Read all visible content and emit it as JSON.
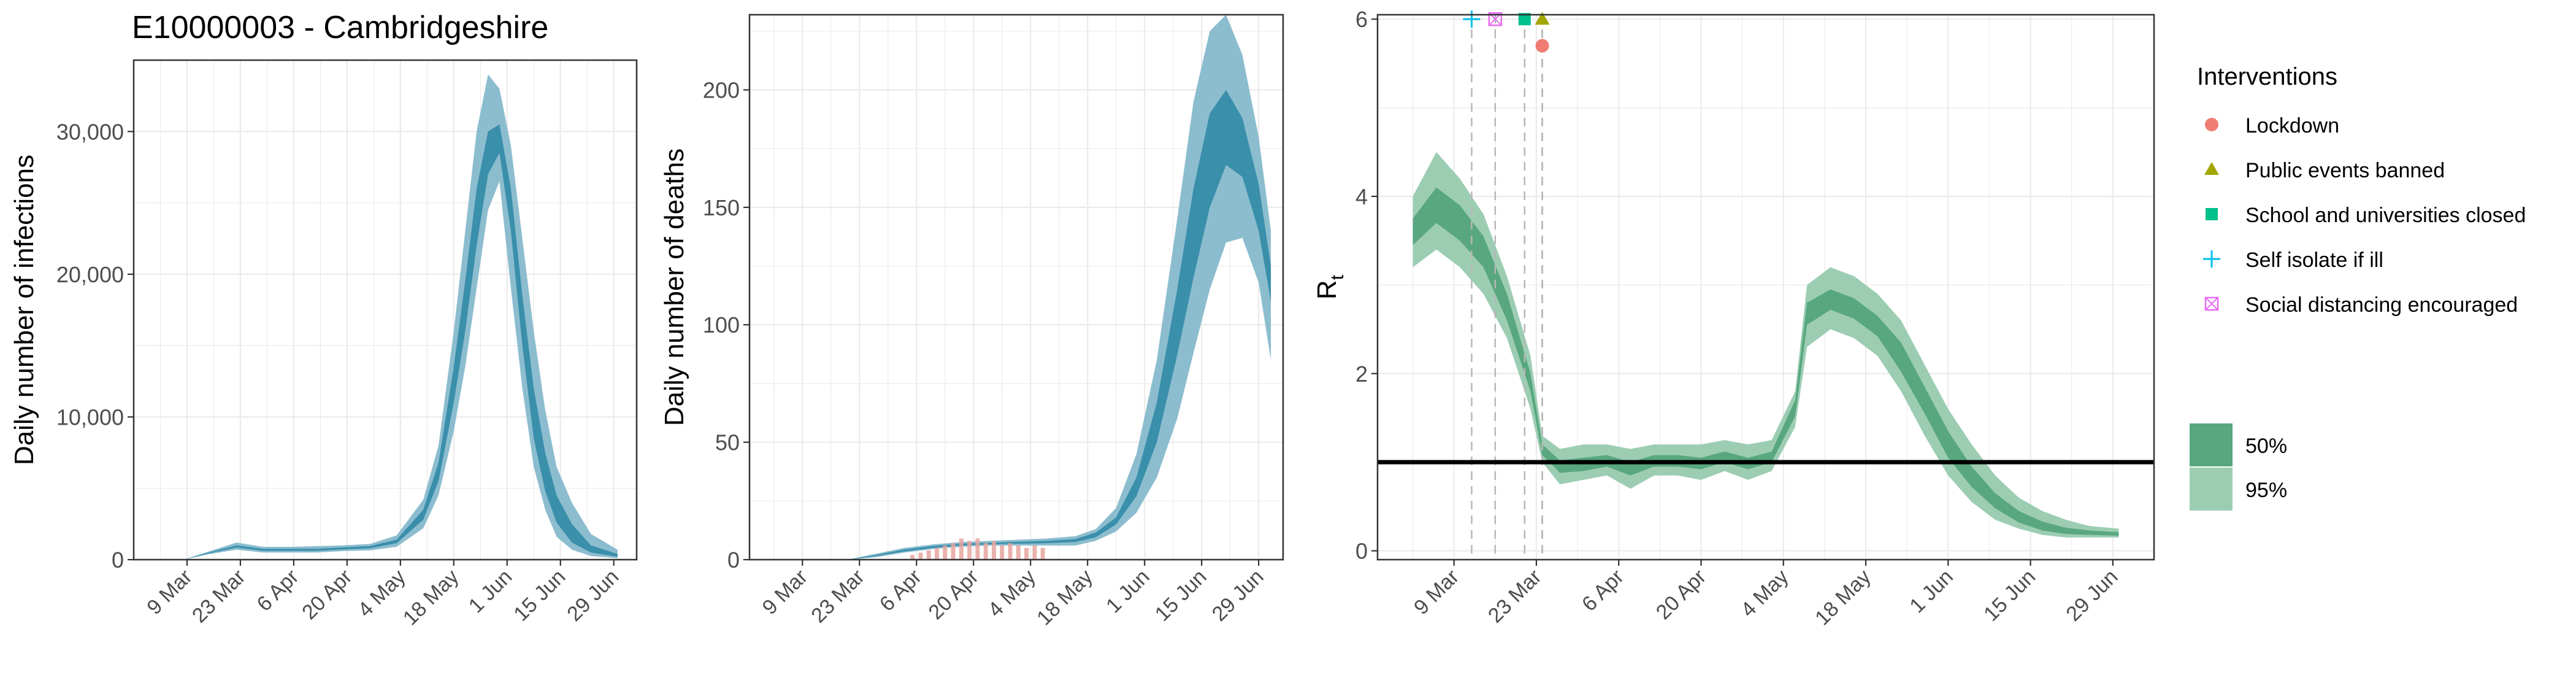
{
  "figure": {
    "title": "E10000003 - Cambridgeshire"
  },
  "colors": {
    "band50_infect": "#3a8fab",
    "band95_infect": "#8cbdcf",
    "band50_rt": "#58a77f",
    "band95_rt": "#9ccdb3",
    "obs_deaths": "#e6a4a0",
    "lockdown": "#f07c73",
    "public_events": "#a3a500",
    "schools": "#00c08b",
    "self_isolate": "#00bfe9",
    "social_distancing": "#e76bf3",
    "grid": "#ebebeb",
    "vline": "#b7b7b7"
  },
  "legend": {
    "interventions_title": "Interventions",
    "interventions": [
      {
        "label": "Lockdown",
        "shape": "circle",
        "color_key": "lockdown"
      },
      {
        "label": "Public events banned",
        "shape": "triangle",
        "color_key": "public_events"
      },
      {
        "label": "School and universities closed",
        "shape": "square",
        "color_key": "schools"
      },
      {
        "label": "Self isolate if ill",
        "shape": "plus",
        "color_key": "self_isolate"
      },
      {
        "label": "Social distancing encouraged",
        "shape": "boxx",
        "color_key": "social_distancing"
      }
    ],
    "bands": [
      {
        "label": "50%",
        "color_key": "band50_rt"
      },
      {
        "label": "95%",
        "color_key": "band95_rt"
      }
    ]
  },
  "chart_data": [
    {
      "type": "area",
      "ylabel": "Daily number of infections",
      "ylim": [
        0,
        35000
      ],
      "yticks": [
        0,
        10000,
        20000,
        30000
      ],
      "ytick_labels": [
        "0",
        "10,000",
        "20,000",
        "30,000"
      ],
      "xlim": [
        "2020-02-24",
        "2020-07-05"
      ],
      "xticks": [
        "2020-03-09",
        "2020-03-23",
        "2020-04-06",
        "2020-04-20",
        "2020-05-04",
        "2020-05-18",
        "2020-06-01",
        "2020-06-15",
        "2020-06-29"
      ],
      "xtick_labels": [
        "9 Mar",
        "23 Mar",
        "6 Apr",
        "20 Apr",
        "4 May",
        "18 May",
        "1 Jun",
        "15 Jun",
        "29 Jun"
      ],
      "x": [
        "2020-03-08",
        "2020-03-15",
        "2020-03-22",
        "2020-03-29",
        "2020-04-05",
        "2020-04-12",
        "2020-04-19",
        "2020-04-26",
        "2020-05-03",
        "2020-05-10",
        "2020-05-14",
        "2020-05-18",
        "2020-05-21",
        "2020-05-24",
        "2020-05-27",
        "2020-05-30",
        "2020-06-02",
        "2020-06-05",
        "2020-06-08",
        "2020-06-11",
        "2020-06-14",
        "2020-06-18",
        "2020-06-23",
        "2020-06-30"
      ],
      "series": [
        {
          "band": "95%",
          "lower": [
            0,
            400,
            700,
            500,
            500,
            500,
            600,
            650,
            900,
            2200,
            4500,
            9000,
            13500,
            19000,
            24500,
            26500,
            19000,
            12000,
            6500,
            3500,
            1600,
            700,
            250,
            100
          ],
          "upper": [
            0,
            600,
            1200,
            900,
            900,
            950,
            1000,
            1100,
            1700,
            4200,
            8000,
            16000,
            23000,
            30000,
            34000,
            33000,
            29000,
            22500,
            16000,
            10500,
            6500,
            4000,
            1800,
            700
          ]
        },
        {
          "band": "50%",
          "lower": [
            0,
            450,
            850,
            620,
            620,
            620,
            720,
            800,
            1150,
            2800,
            5500,
            11000,
            16000,
            22000,
            27000,
            28500,
            23000,
            15000,
            8500,
            4800,
            2600,
            1200,
            500,
            200
          ],
          "upper": [
            0,
            520,
            1000,
            760,
            760,
            760,
            860,
            950,
            1400,
            3500,
            6800,
            13500,
            19500,
            26000,
            30000,
            30500,
            26000,
            18500,
            12000,
            7500,
            4500,
            2500,
            1000,
            400
          ]
        }
      ]
    },
    {
      "type": "area",
      "ylabel": "Daily number of deaths",
      "ylim": [
        0,
        232
      ],
      "yticks": [
        0,
        50,
        100,
        150,
        200
      ],
      "ytick_labels": [
        "0",
        "50",
        "100",
        "150",
        "200"
      ],
      "xlim": [
        "2020-02-25",
        "2020-07-05"
      ],
      "xticks": [
        "2020-03-09",
        "2020-03-23",
        "2020-04-06",
        "2020-04-20",
        "2020-05-04",
        "2020-05-18",
        "2020-06-01",
        "2020-06-15",
        "2020-06-29"
      ],
      "xtick_labels": [
        "9 Mar",
        "23 Mar",
        "6 Apr",
        "20 Apr",
        "4 May",
        "18 May",
        "1 Jun",
        "15 Jun",
        "29 Jun"
      ],
      "x": [
        "2020-03-20",
        "2020-03-27",
        "2020-04-03",
        "2020-04-10",
        "2020-04-17",
        "2020-04-24",
        "2020-05-01",
        "2020-05-08",
        "2020-05-15",
        "2020-05-20",
        "2020-05-25",
        "2020-05-30",
        "2020-06-04",
        "2020-06-09",
        "2020-06-13",
        "2020-06-17",
        "2020-06-21",
        "2020-06-25",
        "2020-06-29",
        "2020-07-02"
      ],
      "series": [
        {
          "band": "95%",
          "lower": [
            0,
            1,
            3,
            4.5,
            5.5,
            6,
            6,
            6,
            6,
            8,
            12,
            20,
            35,
            60,
            88,
            115,
            135,
            137,
            118,
            85
          ],
          "upper": [
            0,
            2.5,
            5,
            6.5,
            7.5,
            8,
            8.5,
            9,
            10,
            13,
            22,
            45,
            85,
            145,
            195,
            225,
            232,
            215,
            180,
            140
          ]
        },
        {
          "band": "50%",
          "lower": [
            0,
            1.5,
            3.5,
            5,
            6,
            6.5,
            6.8,
            7,
            7.5,
            9.5,
            15,
            27,
            50,
            87,
            120,
            150,
            168,
            163,
            140,
            110
          ],
          "upper": [
            0,
            2,
            4.3,
            5.8,
            6.8,
            7.2,
            7.6,
            8,
            8.8,
            11.5,
            18,
            35,
            67,
            115,
            158,
            190,
            200,
            188,
            160,
            125
          ]
        }
      ],
      "observed_deaths": {
        "dates": [
          "2020-04-05",
          "2020-04-07",
          "2020-04-09",
          "2020-04-11",
          "2020-04-13",
          "2020-04-15",
          "2020-04-17",
          "2020-04-19",
          "2020-04-21",
          "2020-04-23",
          "2020-04-25",
          "2020-04-27",
          "2020-04-29",
          "2020-05-01",
          "2020-05-03",
          "2020-05-05",
          "2020-05-07"
        ],
        "values": [
          2,
          3,
          4,
          5,
          6,
          7,
          9,
          8,
          9,
          7,
          8,
          6,
          7,
          6,
          5,
          6,
          5
        ]
      }
    },
    {
      "type": "area",
      "ylabel": "R",
      "ylabel_sub": "t",
      "ylim": [
        -0.1,
        6.05
      ],
      "yticks": [
        0,
        2,
        4,
        6
      ],
      "ytick_labels": [
        "0",
        "2",
        "4",
        "6"
      ],
      "xlim": [
        "2020-02-25",
        "2020-07-06"
      ],
      "xticks": [
        "2020-03-09",
        "2020-03-23",
        "2020-04-06",
        "2020-04-20",
        "2020-05-04",
        "2020-05-18",
        "2020-06-01",
        "2020-06-15",
        "2020-06-29"
      ],
      "xtick_labels": [
        "9 Mar",
        "23 Mar",
        "6 Apr",
        "20 Apr",
        "4 May",
        "18 May",
        "1 Jun",
        "15 Jun",
        "29 Jun"
      ],
      "reference_line": 1,
      "x": [
        "2020-03-02",
        "2020-03-06",
        "2020-03-10",
        "2020-03-14",
        "2020-03-18",
        "2020-03-22",
        "2020-03-24",
        "2020-03-27",
        "2020-03-31",
        "2020-04-04",
        "2020-04-08",
        "2020-04-12",
        "2020-04-16",
        "2020-04-20",
        "2020-04-24",
        "2020-04-28",
        "2020-05-02",
        "2020-05-06",
        "2020-05-08",
        "2020-05-12",
        "2020-05-16",
        "2020-05-20",
        "2020-05-24",
        "2020-05-28",
        "2020-06-01",
        "2020-06-05",
        "2020-06-09",
        "2020-06-13",
        "2020-06-17",
        "2020-06-21",
        "2020-06-25",
        "2020-06-30"
      ],
      "series": [
        {
          "band": "95%",
          "lower": [
            3.2,
            3.4,
            3.2,
            2.9,
            2.4,
            1.6,
            1.0,
            0.75,
            0.8,
            0.85,
            0.7,
            0.85,
            0.85,
            0.8,
            0.9,
            0.8,
            0.9,
            1.4,
            2.3,
            2.5,
            2.4,
            2.2,
            1.8,
            1.3,
            0.85,
            0.55,
            0.35,
            0.25,
            0.18,
            0.15,
            0.15,
            0.15
          ],
          "upper": [
            4.0,
            4.5,
            4.2,
            3.8,
            3.1,
            2.2,
            1.3,
            1.15,
            1.2,
            1.2,
            1.15,
            1.2,
            1.2,
            1.2,
            1.25,
            1.2,
            1.25,
            1.8,
            3.0,
            3.2,
            3.1,
            2.9,
            2.6,
            2.1,
            1.6,
            1.2,
            0.85,
            0.6,
            0.45,
            0.35,
            0.28,
            0.25
          ]
        },
        {
          "band": "50%",
          "lower": [
            3.45,
            3.7,
            3.5,
            3.2,
            2.6,
            1.8,
            1.08,
            0.88,
            0.9,
            0.95,
            0.85,
            0.95,
            0.95,
            0.92,
            1.0,
            0.92,
            1.0,
            1.52,
            2.55,
            2.72,
            2.62,
            2.42,
            2.02,
            1.55,
            1.05,
            0.72,
            0.48,
            0.32,
            0.23,
            0.19,
            0.18,
            0.17
          ],
          "upper": [
            3.75,
            4.1,
            3.9,
            3.55,
            2.9,
            2.0,
            1.2,
            1.02,
            1.05,
            1.08,
            1.0,
            1.08,
            1.08,
            1.05,
            1.12,
            1.05,
            1.12,
            1.7,
            2.8,
            2.95,
            2.85,
            2.65,
            2.35,
            1.85,
            1.35,
            0.95,
            0.65,
            0.45,
            0.33,
            0.26,
            0.23,
            0.21
          ]
        }
      ],
      "interventions": [
        {
          "name": "Self isolate if ill",
          "date": "2020-03-12",
          "shape": "plus",
          "color_key": "self_isolate",
          "y": 6.0
        },
        {
          "name": "Social distancing encouraged",
          "date": "2020-03-16",
          "shape": "boxx",
          "color_key": "social_distancing",
          "y": 6.0
        },
        {
          "name": "School and universities closed",
          "date": "2020-03-21",
          "shape": "square",
          "color_key": "schools",
          "y": 6.0
        },
        {
          "name": "Public events banned",
          "date": "2020-03-24",
          "shape": "triangle",
          "color_key": "public_events",
          "y": 6.0
        },
        {
          "name": "Lockdown",
          "date": "2020-03-24",
          "shape": "circle",
          "color_key": "lockdown",
          "y": 5.7
        }
      ]
    }
  ]
}
